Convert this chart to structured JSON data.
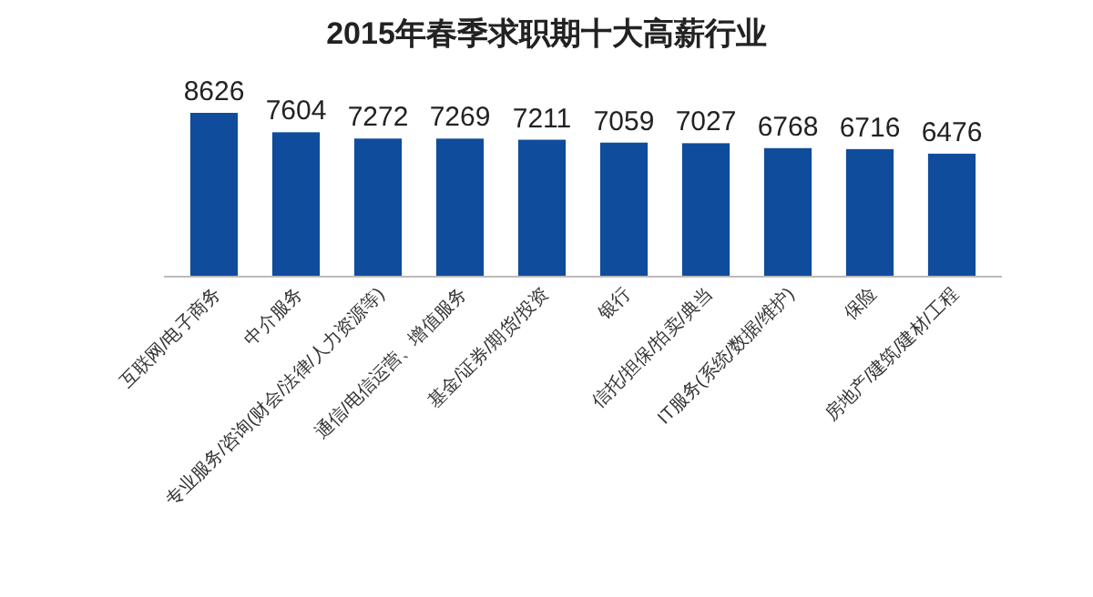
{
  "chart_data": {
    "type": "bar",
    "title": "2015年春季求职期十大高薪行业",
    "categories": [
      "互联网/电子商务",
      "中介服务",
      "专业服务/咨询(财会/法律/人力资源等)",
      "通信/电信运营、增值服务",
      "基金/证券/期货/投资",
      "银行",
      "信托/担保/拍卖/典当",
      "IT服务(系统/数据/维护)",
      "保险",
      "房地产/建筑/建材/工程"
    ],
    "values": [
      8626,
      7604,
      7272,
      7269,
      7211,
      7059,
      7027,
      6768,
      6716,
      6476
    ],
    "color": "#0f4c9c",
    "data_labels": true
  }
}
